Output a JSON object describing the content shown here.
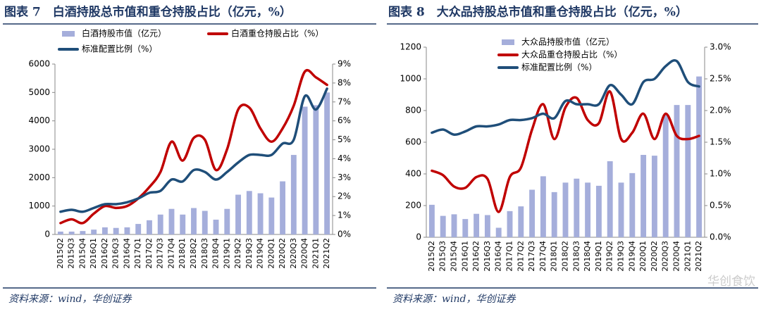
{
  "chart_data": [
    {
      "type": "combo",
      "title": "图表 7　白酒持股总市值和重仓持股占比（亿元，%）",
      "source": "资料来源：wind，华创证券",
      "categories": [
        "2015Q2",
        "2015Q3",
        "2015Q4",
        "2016Q1",
        "2016Q2",
        "2016Q3",
        "2016Q4",
        "2017Q1",
        "2017Q2",
        "2017Q3",
        "2017Q4",
        "2018Q1",
        "2018Q2",
        "2018Q3",
        "2018Q4",
        "2019Q1",
        "2019Q2",
        "2019Q3",
        "2019Q4",
        "2020Q1",
        "2020Q2",
        "2020Q3",
        "2020Q4",
        "2021Q1",
        "2021Q2"
      ],
      "ylim": [
        0,
        6000
      ],
      "yticks": [
        0,
        1000,
        2000,
        3000,
        4000,
        5000,
        6000
      ],
      "y2lim": [
        0,
        9
      ],
      "y2ticks": [
        {
          "value": 0,
          "label": "0%"
        },
        {
          "value": 1,
          "label": "1%"
        },
        {
          "value": 2,
          "label": "2%"
        },
        {
          "value": 3,
          "label": "3%"
        },
        {
          "value": 4,
          "label": "4%"
        },
        {
          "value": 5,
          "label": "5%"
        },
        {
          "value": 6,
          "label": "6%"
        },
        {
          "value": 7,
          "label": "7%"
        },
        {
          "value": 8,
          "label": "8%"
        },
        {
          "value": 9,
          "label": "9%"
        }
      ],
      "series": [
        {
          "name": "白酒持股市值（亿元）",
          "type": "bar",
          "color": "#a5aedb",
          "values": [
            100,
            100,
            120,
            170,
            250,
            230,
            250,
            370,
            500,
            700,
            900,
            700,
            930,
            830,
            520,
            900,
            1400,
            1530,
            1450,
            1300,
            1870,
            2800,
            4500,
            4550,
            5000
          ]
        },
        {
          "name": "白酒重仓持股占比（%）",
          "type": "line",
          "axis": "y2",
          "color": "#c00000",
          "values": [
            0.6,
            0.8,
            0.6,
            1.1,
            1.5,
            1.4,
            1.5,
            1.9,
            2.5,
            3.3,
            4.9,
            3.9,
            5.1,
            5.0,
            3.4,
            4.5,
            6.6,
            6.7,
            5.6,
            4.9,
            5.6,
            6.8,
            8.6,
            8.3,
            7.9
          ]
        },
        {
          "name": "标准配置比例（%）",
          "type": "line",
          "axis": "y2",
          "color": "#1f4e79",
          "values": [
            1.2,
            1.3,
            1.2,
            1.4,
            1.6,
            1.6,
            1.7,
            1.9,
            2.2,
            2.3,
            2.9,
            2.8,
            3.4,
            3.3,
            2.9,
            3.3,
            3.8,
            4.2,
            4.2,
            4.2,
            4.8,
            5.0,
            7.3,
            6.6,
            7.7
          ]
        }
      ]
    },
    {
      "type": "combo",
      "title": "图表 8　大众品持股总市值和重仓持股占比（亿元，%）",
      "source": "资料来源：wind，华创证券",
      "watermark": "华创食饮",
      "categories": [
        "2015Q2",
        "2015Q3",
        "2015Q4",
        "2016Q1",
        "2016Q2",
        "2016Q3",
        "2016Q4",
        "2017Q1",
        "2017Q2",
        "2017Q3",
        "2017Q4",
        "2018Q1",
        "2018Q2",
        "2018Q3",
        "2018Q4",
        "2019Q1",
        "2019Q2",
        "2019Q3",
        "2019Q4",
        "2020Q1",
        "2020Q2",
        "2020Q3",
        "2020Q4",
        "2021Q1",
        "2021Q2"
      ],
      "ylim": [
        0,
        1200
      ],
      "yticks": [
        0,
        200,
        400,
        600,
        800,
        1000,
        1200
      ],
      "y2lim": [
        0,
        3
      ],
      "y2ticks": [
        {
          "value": 0,
          "label": "0.0%"
        },
        {
          "value": 0.5,
          "label": "0.5%"
        },
        {
          "value": 1,
          "label": "1.0%"
        },
        {
          "value": 1.5,
          "label": "1.5%"
        },
        {
          "value": 2,
          "label": "2.0%"
        },
        {
          "value": 2.5,
          "label": "2.5%"
        },
        {
          "value": 3,
          "label": "3.0%"
        }
      ],
      "series": [
        {
          "name": "大众品持股市值（亿元）",
          "type": "bar",
          "color": "#a5aedb",
          "values": [
            205,
            135,
            145,
            115,
            148,
            140,
            60,
            165,
            195,
            300,
            385,
            285,
            345,
            370,
            345,
            325,
            480,
            345,
            405,
            520,
            515,
            775,
            835,
            835,
            1015
          ]
        },
        {
          "name": "大众品重仓持股占比（%）",
          "type": "line",
          "axis": "y2",
          "color": "#c00000",
          "values": [
            1.05,
            0.98,
            0.8,
            0.78,
            0.95,
            0.92,
            0.4,
            0.95,
            1.1,
            1.7,
            2.1,
            1.55,
            2.05,
            2.2,
            1.85,
            1.8,
            2.3,
            1.55,
            1.65,
            1.95,
            1.55,
            1.95,
            1.6,
            1.55,
            1.6
          ]
        },
        {
          "name": "标准配置比例（%）",
          "type": "line",
          "axis": "y2",
          "color": "#1f4e79",
          "values": [
            1.65,
            1.7,
            1.62,
            1.67,
            1.75,
            1.75,
            1.78,
            1.85,
            1.85,
            1.88,
            1.95,
            1.88,
            2.15,
            2.1,
            2.1,
            2.1,
            2.4,
            2.25,
            2.1,
            2.45,
            2.5,
            2.7,
            2.78,
            2.45,
            2.38
          ]
        }
      ]
    }
  ]
}
